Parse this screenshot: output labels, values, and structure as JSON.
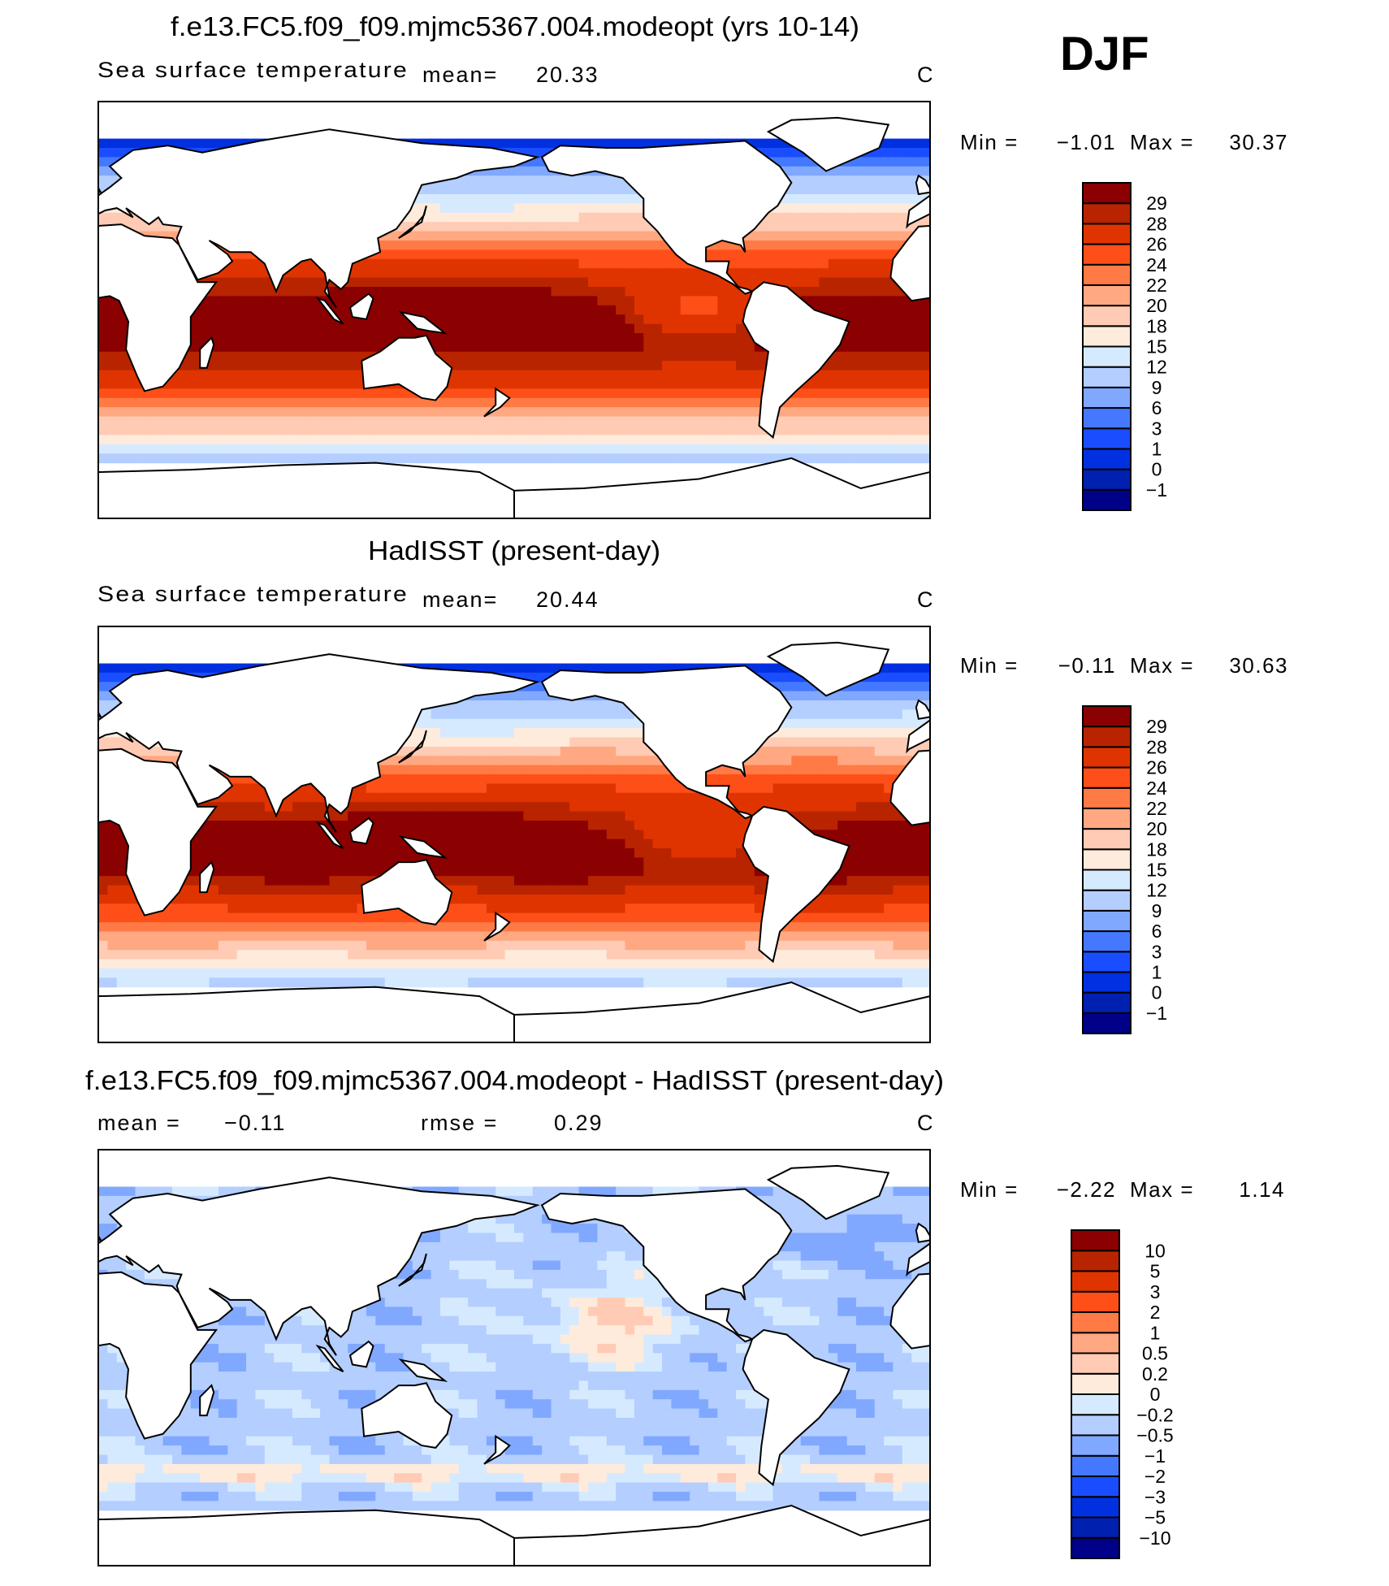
{
  "season": "DJF",
  "chart_data": [
    {
      "type": "heatmap",
      "title": "f.e13.FC5.f09_f09.mjmc5367.004.modeopt (yrs 10-14)",
      "subtitle": "Sea surface temperature",
      "mean_label": "mean=",
      "mean": "20.33",
      "units": "C",
      "min_label": "Min  =",
      "min": "−1.01",
      "max_label": "Max  =",
      "max": "30.37",
      "x_range_deg_lon": [
        0,
        360
      ],
      "y_range_deg_lat": [
        -90,
        90
      ],
      "colorbar": {
        "levels": [
          "−1",
          "0",
          "1",
          "3",
          "6",
          "9",
          "12",
          "15",
          "18",
          "20",
          "22",
          "24",
          "26",
          "28",
          "29"
        ],
        "level_values": [
          -1,
          0,
          1,
          3,
          6,
          9,
          12,
          15,
          18,
          20,
          22,
          24,
          26,
          28,
          29
        ],
        "colors": [
          "#000088",
          "#0020b0",
          "#0030e0",
          "#1a4dff",
          "#4479ff",
          "#80a8ff",
          "#b3ceff",
          "#d6eaff",
          "#ffebdb",
          "#ffcbb4",
          "#ffa882",
          "#ff7a45",
          "#ff4f19",
          "#e03400",
          "#b82400",
          "#8b0000"
        ]
      }
    },
    {
      "type": "heatmap",
      "title": "HadISST (present-day)",
      "subtitle": "Sea surface temperature",
      "mean_label": "mean=",
      "mean": "20.44",
      "units": "C",
      "min_label": "Min  =",
      "min": "−0.11",
      "max_label": "Max  =",
      "max": "30.63",
      "x_range_deg_lon": [
        0,
        360
      ],
      "y_range_deg_lat": [
        -90,
        90
      ],
      "colorbar": {
        "levels": [
          "−1",
          "0",
          "1",
          "3",
          "6",
          "9",
          "12",
          "15",
          "18",
          "20",
          "22",
          "24",
          "26",
          "28",
          "29"
        ],
        "level_values": [
          -1,
          0,
          1,
          3,
          6,
          9,
          12,
          15,
          18,
          20,
          22,
          24,
          26,
          28,
          29
        ],
        "colors": [
          "#000088",
          "#0020b0",
          "#0030e0",
          "#1a4dff",
          "#4479ff",
          "#80a8ff",
          "#b3ceff",
          "#d6eaff",
          "#ffebdb",
          "#ffcbb4",
          "#ffa882",
          "#ff7a45",
          "#ff4f19",
          "#e03400",
          "#b82400",
          "#8b0000"
        ]
      }
    },
    {
      "type": "heatmap",
      "title": "f.e13.FC5.f09_f09.mjmc5367.004.modeopt - HadISST (present-day)",
      "mean_label": "mean  =",
      "mean": "−0.11",
      "rmse_label": "rmse  =",
      "rmse": "0.29",
      "units": "C",
      "min_label": "Min  =",
      "min": "−2.22",
      "max_label": "Max  =",
      "max": "1.14",
      "x_range_deg_lon": [
        0,
        360
      ],
      "y_range_deg_lat": [
        -90,
        90
      ],
      "colorbar": {
        "levels": [
          "−10",
          "−5",
          "−3",
          "−2",
          "−1",
          "−0.5",
          "−0.2",
          "0",
          "0.2",
          "0.5",
          "1",
          "2",
          "3",
          "5",
          "10"
        ],
        "level_values": [
          -10,
          -5,
          -3,
          -2,
          -1,
          -0.5,
          -0.2,
          0,
          0.2,
          0.5,
          1,
          2,
          3,
          5,
          10
        ],
        "colors": [
          "#000088",
          "#0020b0",
          "#0030e0",
          "#1a4dff",
          "#4479ff",
          "#80a8ff",
          "#b3ceff",
          "#d6eaff",
          "#ffebdb",
          "#ffcbb4",
          "#ffa882",
          "#ff7a45",
          "#ff4f19",
          "#e03400",
          "#b82400",
          "#8b0000"
        ]
      }
    }
  ]
}
